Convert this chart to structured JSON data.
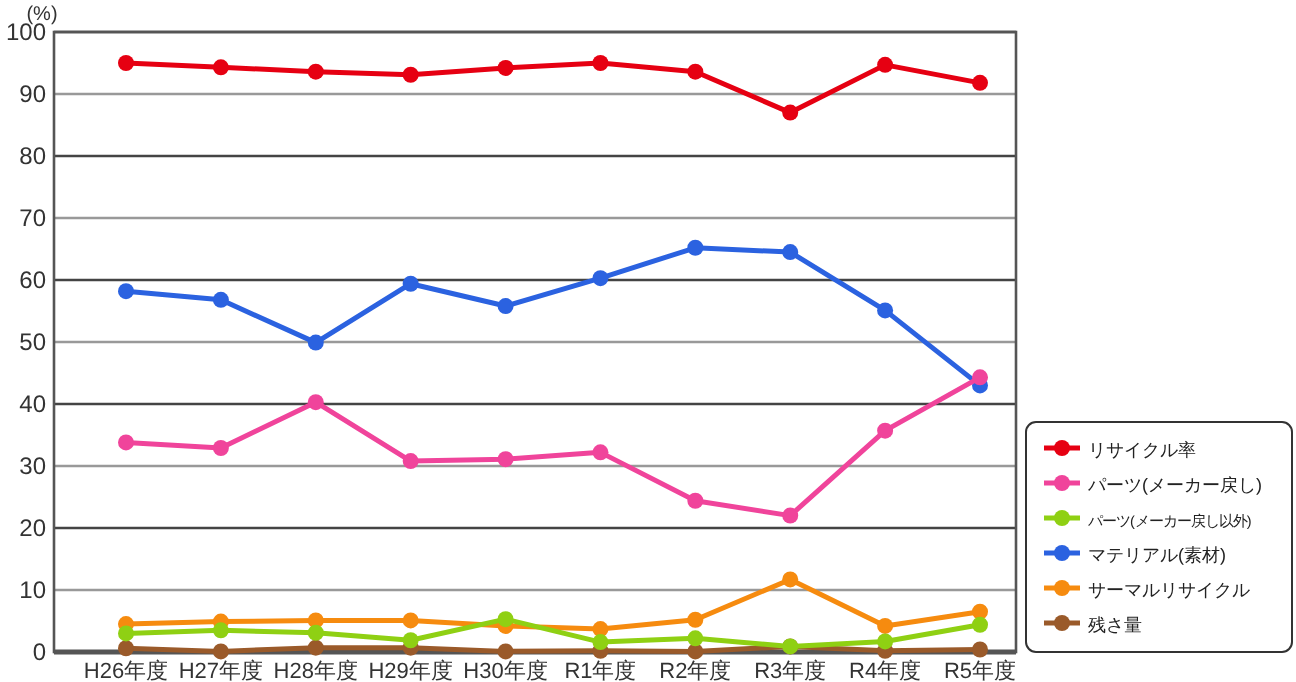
{
  "chart_data": {
    "type": "line",
    "ylabel": "(%)",
    "categories": [
      "H26年度",
      "H27年度",
      "H28年度",
      "H29年度",
      "H30年度",
      "R1年度",
      "R2年度",
      "R3年度",
      "R4年度",
      "R5年度"
    ],
    "series": [
      {
        "name": "リサイクル率",
        "color": "#e60012",
        "values": [
          95,
          94.3,
          93.6,
          93.1,
          94.2,
          95,
          93.6,
          87,
          94.7,
          91.8
        ]
      },
      {
        "name": "パーツ(メーカー戻し)",
        "color": "#f0449b",
        "values": [
          33.8,
          32.9,
          40.3,
          30.8,
          31.1,
          32.2,
          24.4,
          22,
          35.7,
          44.3
        ]
      },
      {
        "name": "パーツ(メーカー戻し以外)",
        "color": "#8fd013",
        "values": [
          3.0,
          3.5,
          3.1,
          1.9,
          5.3,
          1.6,
          2.2,
          0.9,
          1.7,
          4.4
        ]
      },
      {
        "name": "マテリアル(素材)",
        "color": "#2b62e0",
        "values": [
          58.2,
          56.8,
          49.9,
          59.4,
          55.8,
          60.3,
          65.2,
          64.5,
          55.1,
          43
        ]
      },
      {
        "name": "サーマルリサイクル",
        "color": "#f68b0f",
        "values": [
          4.5,
          4.9,
          5.1,
          5.1,
          4.2,
          3.7,
          5.2,
          11.7,
          4.2,
          6.5
        ]
      },
      {
        "name": "残さ量",
        "color": "#9a5a2a",
        "values": [
          0.6,
          0.1,
          0.7,
          0.7,
          0.1,
          0.2,
          0.1,
          0.9,
          0.2,
          0.4
        ]
      }
    ],
    "ylim": [
      0,
      100
    ],
    "yticks": [
      0,
      10,
      20,
      30,
      40,
      50,
      60,
      70,
      80,
      90,
      100
    ],
    "grid": "y",
    "legend": "right",
    "marker": "circle",
    "line_style": "solid"
  }
}
